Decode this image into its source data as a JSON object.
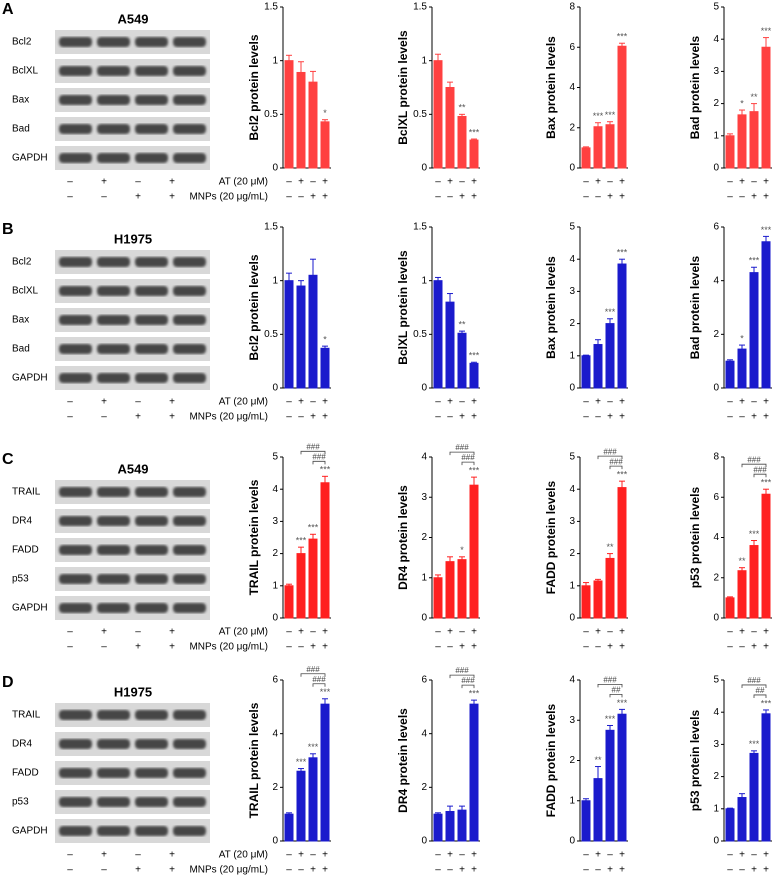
{
  "panels": [
    {
      "letter": "A",
      "cell_line": "A549",
      "blot_labels": [
        "Bcl2",
        "BclXL",
        "Bax",
        "Bad",
        "GAPDH"
      ],
      "conditions": [
        {
          "name": "AT (20 μM)",
          "marks": [
            "–",
            "+",
            "–",
            "+"
          ]
        },
        {
          "name": "MNPs (20 μg/mL)",
          "marks": [
            "–",
            "–",
            "+",
            "+"
          ]
        }
      ]
    },
    {
      "letter": "B",
      "cell_line": "H1975",
      "blot_labels": [
        "Bcl2",
        "BclXL",
        "Bax",
        "Bad",
        "GAPDH"
      ],
      "conditions": [
        {
          "name": "AT (20 μM)",
          "marks": [
            "–",
            "+",
            "–",
            "+"
          ]
        },
        {
          "name": "MNPs (20 μg/mL)",
          "marks": [
            "–",
            "–",
            "+",
            "+"
          ]
        }
      ]
    },
    {
      "letter": "C",
      "cell_line": "A549",
      "blot_labels": [
        "TRAIL",
        "DR4",
        "FADD",
        "p53",
        "GAPDH"
      ],
      "conditions": [
        {
          "name": "AT (20 μM)",
          "marks": [
            "–",
            "+",
            "–",
            "+"
          ]
        },
        {
          "name": "MNPs (20 μg/mL)",
          "marks": [
            "–",
            "–",
            "+",
            "+"
          ]
        }
      ]
    },
    {
      "letter": "D",
      "cell_line": "H1975",
      "blot_labels": [
        "TRAIL",
        "DR4",
        "FADD",
        "p53",
        "GAPDH"
      ],
      "conditions": [
        {
          "name": "AT (20 μM)",
          "marks": [
            "–",
            "+",
            "–",
            "+"
          ]
        },
        {
          "name": "MNPs (20 μg/mL)",
          "marks": [
            "–",
            "–",
            "+",
            "+"
          ]
        }
      ]
    }
  ],
  "chart_data": [
    {
      "type": "bar",
      "ylabel": "Bcl2 protein levels",
      "color": "#ff4040",
      "values": [
        1.0,
        0.89,
        0.8,
        0.43
      ],
      "errors": [
        0.05,
        0.1,
        0.1,
        0.02
      ],
      "annotations": [
        null,
        null,
        null,
        "*"
      ],
      "ylim": [
        0,
        1.5
      ],
      "yticks": [
        0,
        0.5,
        1,
        1.5
      ]
    },
    {
      "type": "bar",
      "ylabel": "BclXL protein levels",
      "color": "#ff4040",
      "values": [
        1.0,
        0.75,
        0.48,
        0.26
      ],
      "errors": [
        0.06,
        0.05,
        0.02,
        0.01
      ],
      "annotations": [
        null,
        null,
        "**",
        "***"
      ],
      "ylim": [
        0,
        1.5
      ],
      "yticks": [
        0,
        0.5,
        1,
        1.5
      ]
    },
    {
      "type": "bar",
      "ylabel": "Bax protein levels",
      "color": "#ff4040",
      "values": [
        1.0,
        2.05,
        2.15,
        6.05
      ],
      "errors": [
        0.05,
        0.2,
        0.15,
        0.15
      ],
      "annotations": [
        null,
        "***",
        "***",
        "***"
      ],
      "ylim": [
        0,
        8
      ],
      "yticks": [
        0,
        2,
        4,
        6,
        8
      ]
    },
    {
      "type": "bar",
      "ylabel": "Bad protein levels",
      "color": "#ff4040",
      "values": [
        1.0,
        1.65,
        1.75,
        3.75
      ],
      "errors": [
        0.06,
        0.15,
        0.25,
        0.3
      ],
      "annotations": [
        null,
        "*",
        "**",
        "***"
      ],
      "ylim": [
        0,
        5
      ],
      "yticks": [
        0,
        1,
        2,
        3,
        4,
        5
      ]
    },
    {
      "type": "bar",
      "ylabel": "Bcl2 protein levels",
      "color": "#1a1acc",
      "values": [
        1.0,
        0.95,
        1.05,
        0.37
      ],
      "errors": [
        0.07,
        0.05,
        0.15,
        0.02
      ],
      "annotations": [
        null,
        null,
        null,
        "*"
      ],
      "ylim": [
        0,
        1.5
      ],
      "yticks": [
        0,
        0.5,
        1,
        1.5
      ]
    },
    {
      "type": "bar",
      "ylabel": "BclXL protein levels",
      "color": "#1a1acc",
      "values": [
        1.0,
        0.8,
        0.51,
        0.23
      ],
      "errors": [
        0.03,
        0.08,
        0.02,
        0.01
      ],
      "annotations": [
        null,
        null,
        "**",
        "***"
      ],
      "ylim": [
        0,
        1.5
      ],
      "yticks": [
        0,
        0.5,
        1,
        1.5
      ]
    },
    {
      "type": "bar",
      "ylabel": "Bax protein levels",
      "color": "#1a1acc",
      "values": [
        1.0,
        1.35,
        2.0,
        3.85
      ],
      "errors": [
        0.02,
        0.15,
        0.15,
        0.15
      ],
      "annotations": [
        null,
        null,
        "***",
        "***"
      ],
      "ylim": [
        0,
        5
      ],
      "yticks": [
        0,
        1,
        2,
        3,
        4,
        5
      ]
    },
    {
      "type": "bar",
      "ylabel": "Bad protein levels",
      "color": "#1a1acc",
      "values": [
        1.0,
        1.45,
        4.3,
        5.45
      ],
      "errors": [
        0.05,
        0.15,
        0.2,
        0.2
      ],
      "annotations": [
        null,
        "*",
        "***",
        "***"
      ],
      "ylim": [
        0,
        6
      ],
      "yticks": [
        0,
        2,
        4,
        6
      ]
    },
    {
      "type": "bar",
      "ylabel": "TRAIL protein levels",
      "color": "#ff2020",
      "values": [
        1.0,
        2.0,
        2.45,
        4.2
      ],
      "errors": [
        0.05,
        0.2,
        0.15,
        0.2
      ],
      "annotations": [
        null,
        "***",
        "***",
        "***"
      ],
      "ylim": [
        0,
        5
      ],
      "yticks": [
        0,
        1,
        2,
        3,
        4,
        5
      ],
      "brackets": [
        {
          "label": "###",
          "bars": [
            1,
            3
          ]
        },
        {
          "label": "###",
          "bars": [
            2,
            3
          ]
        }
      ]
    },
    {
      "type": "bar",
      "ylabel": "DR4 protein levels",
      "color": "#ff2020",
      "values": [
        1.0,
        1.4,
        1.45,
        3.3
      ],
      "errors": [
        0.07,
        0.12,
        0.07,
        0.2
      ],
      "annotations": [
        null,
        null,
        "*",
        "***"
      ],
      "ylim": [
        0,
        4
      ],
      "yticks": [
        0,
        1,
        2,
        3,
        4
      ],
      "brackets": [
        {
          "label": "###",
          "bars": [
            1,
            3
          ]
        },
        {
          "label": "###",
          "bars": [
            2,
            3
          ]
        }
      ]
    },
    {
      "type": "bar",
      "ylabel": "FADD protein levels",
      "color": "#ff2020",
      "values": [
        1.0,
        1.15,
        1.85,
        4.05
      ],
      "errors": [
        0.1,
        0.05,
        0.15,
        0.2
      ],
      "annotations": [
        null,
        null,
        "**",
        "***"
      ],
      "ylim": [
        0,
        5
      ],
      "yticks": [
        0,
        1,
        2,
        3,
        4,
        5
      ],
      "brackets": [
        {
          "label": "###",
          "bars": [
            1,
            3
          ]
        },
        {
          "label": "###",
          "bars": [
            2,
            3
          ]
        }
      ]
    },
    {
      "type": "bar",
      "ylabel": "p53 protein levels",
      "color": "#ff2020",
      "values": [
        1.0,
        2.35,
        3.6,
        6.15
      ],
      "errors": [
        0.05,
        0.15,
        0.25,
        0.25
      ],
      "annotations": [
        null,
        "**",
        "***",
        "***"
      ],
      "ylim": [
        0,
        8
      ],
      "yticks": [
        0,
        2,
        4,
        6,
        8
      ],
      "brackets": [
        {
          "label": "###",
          "bars": [
            1,
            3
          ]
        },
        {
          "label": "###",
          "bars": [
            2,
            3
          ]
        }
      ]
    },
    {
      "type": "bar",
      "ylabel": "TRAIL protein levels",
      "color": "#1a1acc",
      "values": [
        1.0,
        2.6,
        3.1,
        5.1
      ],
      "errors": [
        0.05,
        0.1,
        0.15,
        0.2
      ],
      "annotations": [
        null,
        "***",
        "***",
        "***"
      ],
      "ylim": [
        0,
        6
      ],
      "yticks": [
        0,
        2,
        4,
        6
      ],
      "brackets": [
        {
          "label": "###",
          "bars": [
            1,
            3
          ]
        },
        {
          "label": "###",
          "bars": [
            2,
            3
          ]
        }
      ]
    },
    {
      "type": "bar",
      "ylabel": "DR4 protein levels",
      "color": "#1a1acc",
      "values": [
        1.0,
        1.1,
        1.15,
        5.1
      ],
      "errors": [
        0.05,
        0.2,
        0.15,
        0.15
      ],
      "annotations": [
        null,
        null,
        null,
        "***"
      ],
      "ylim": [
        0,
        6
      ],
      "yticks": [
        0,
        2,
        4,
        6
      ],
      "brackets": [
        {
          "label": "###",
          "bars": [
            1,
            3
          ]
        },
        {
          "label": "###",
          "bars": [
            2,
            3
          ]
        }
      ]
    },
    {
      "type": "bar",
      "ylabel": "FADD protein levels",
      "color": "#1a1acc",
      "values": [
        1.0,
        1.55,
        2.75,
        3.15
      ],
      "errors": [
        0.05,
        0.3,
        0.12,
        0.12
      ],
      "annotations": [
        null,
        "**",
        "***",
        "***"
      ],
      "ylim": [
        0,
        4
      ],
      "yticks": [
        0,
        1,
        2,
        3,
        4
      ],
      "brackets": [
        {
          "label": "###",
          "bars": [
            1,
            3
          ]
        },
        {
          "label": "##",
          "bars": [
            2,
            3
          ]
        }
      ]
    },
    {
      "type": "bar",
      "ylabel": "p53 protein levels",
      "color": "#1a1acc",
      "values": [
        1.0,
        1.35,
        2.72,
        3.95
      ],
      "errors": [
        0.02,
        0.12,
        0.08,
        0.12
      ],
      "annotations": [
        null,
        null,
        "***",
        "***"
      ],
      "ylim": [
        0,
        5
      ],
      "yticks": [
        0,
        1,
        2,
        3,
        4,
        5
      ],
      "brackets": [
        {
          "label": "###",
          "bars": [
            1,
            3
          ]
        },
        {
          "label": "##",
          "bars": [
            2,
            3
          ]
        }
      ]
    }
  ]
}
